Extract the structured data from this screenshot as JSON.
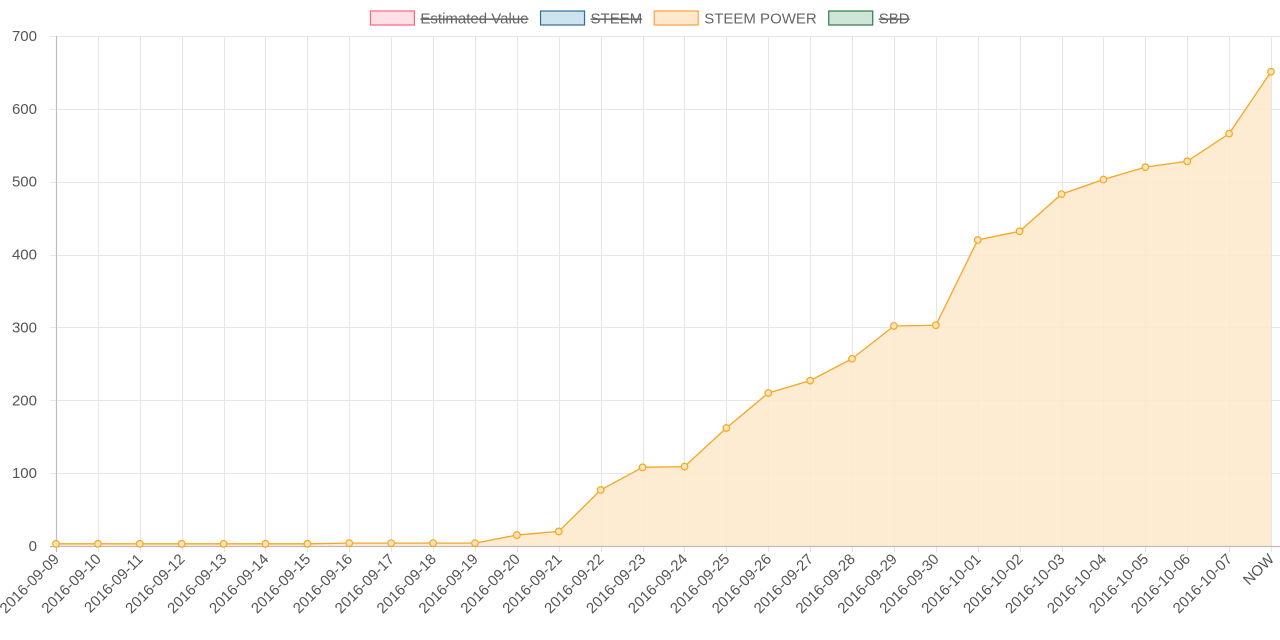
{
  "chart_data": {
    "type": "area",
    "title": "",
    "xlabel": "",
    "ylabel": "",
    "ylim": [
      0,
      700
    ],
    "y_ticks": [
      0,
      100,
      200,
      300,
      400,
      500,
      600,
      700
    ],
    "grid": true,
    "legend_position": "top-center",
    "categories": [
      "2016-09-09",
      "2016-09-10",
      "2016-09-11",
      "2016-09-12",
      "2016-09-13",
      "2016-09-14",
      "2016-09-15",
      "2016-09-16",
      "2016-09-17",
      "2016-09-18",
      "2016-09-19",
      "2016-09-20",
      "2016-09-21",
      "2016-09-22",
      "2016-09-23",
      "2016-09-24",
      "2016-09-25",
      "2016-09-26",
      "2016-09-27",
      "2016-09-28",
      "2016-09-29",
      "2016-09-30",
      "2016-10-01",
      "2016-10-02",
      "2016-10-03",
      "2016-10-04",
      "2016-10-05",
      "2016-10-06",
      "2016-10-07",
      "NOW"
    ],
    "legend": [
      {
        "name": "Estimated Value",
        "hidden": true,
        "border": "#ff6384",
        "fill": "#ffe0e6"
      },
      {
        "name": "STEEM",
        "hidden": true,
        "border": "#2f6d96",
        "fill": "#cde3ee"
      },
      {
        "name": "STEEM POWER",
        "hidden": false,
        "border": "#ff9f40",
        "fill": "#ffe9cc"
      },
      {
        "name": "SBD",
        "hidden": true,
        "border": "#2c7a4b",
        "fill": "#cfe6d6"
      }
    ],
    "series": [
      {
        "name": "STEEM POWER",
        "color": "#f5a623",
        "fill": "#fde9c9",
        "values": [
          3,
          3,
          3,
          3,
          3,
          3,
          3,
          4,
          4,
          4,
          4,
          15,
          20,
          77,
          108,
          109,
          162,
          210,
          227,
          257,
          302,
          303,
          420,
          432,
          483,
          503,
          520,
          528,
          566,
          651
        ]
      }
    ]
  }
}
